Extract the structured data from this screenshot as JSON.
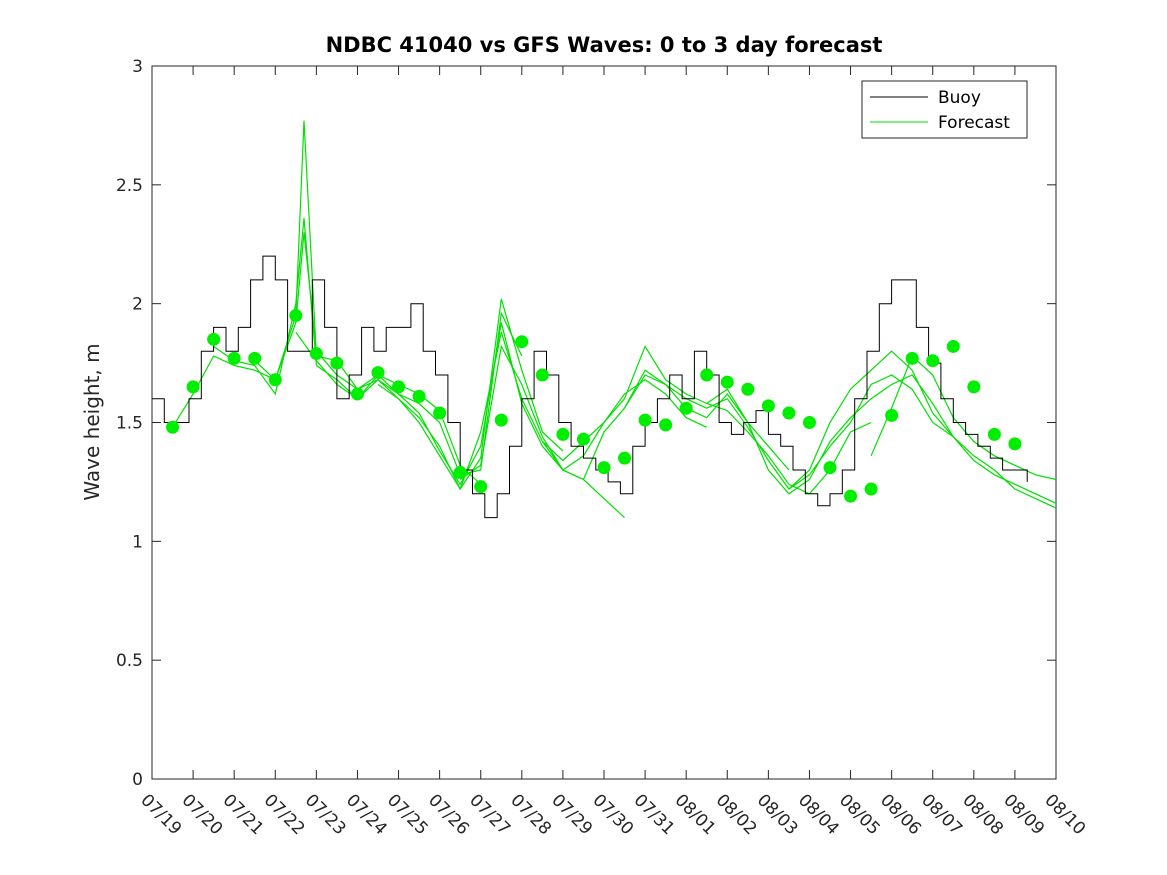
{
  "chart_data": {
    "type": "line",
    "title": "NDBC 41040 vs GFS Waves: 0 to 3 day forecast",
    "xlabel": "",
    "ylabel": "Wave height, m",
    "ylim": [
      0,
      3
    ],
    "yticks": [
      0,
      0.5,
      1,
      1.5,
      2,
      2.5,
      3
    ],
    "ytick_labels": [
      "0",
      "0.5",
      "1",
      "1.5",
      "2",
      "2.5",
      "3"
    ],
    "xlim": [
      0,
      22
    ],
    "xtick_labels": [
      "07/19",
      "07/20",
      "07/21",
      "07/22",
      "07/23",
      "07/24",
      "07/25",
      "07/26",
      "07/27",
      "07/28",
      "07/29",
      "07/30",
      "07/31",
      "08/01",
      "08/02",
      "08/03",
      "08/04",
      "08/05",
      "08/06",
      "08/07",
      "08/08",
      "08/09",
      "08/10"
    ],
    "grid": false,
    "legend": {
      "position": "top-right",
      "entries": [
        {
          "label": "Buoy",
          "color": "#000000"
        },
        {
          "label": "Forecast",
          "color": "#00e000"
        }
      ]
    },
    "colors": {
      "buoy": "#000000",
      "forecast": "#00e000",
      "markers": "#00ee00"
    },
    "series": [
      {
        "name": "Buoy",
        "x": [
          0,
          0.3,
          0.6,
          0.9,
          1.2,
          1.5,
          1.8,
          2.1,
          2.4,
          2.7,
          3.0,
          3.3,
          3.6,
          3.9,
          4.2,
          4.5,
          4.8,
          5.1,
          5.4,
          5.7,
          6.0,
          6.3,
          6.6,
          6.9,
          7.2,
          7.5,
          7.8,
          8.1,
          8.4,
          8.7,
          9.0,
          9.3,
          9.6,
          9.9,
          10.2,
          10.5,
          10.8,
          11.1,
          11.4,
          11.7,
          12.0,
          12.3,
          12.6,
          12.9,
          13.2,
          13.5,
          13.8,
          14.1,
          14.4,
          14.7,
          15.0,
          15.3,
          15.6,
          15.9,
          16.2,
          16.5,
          16.8,
          17.1,
          17.4,
          17.7,
          18.0,
          18.3,
          18.6,
          18.9,
          19.2,
          19.5,
          19.8,
          20.1,
          20.4,
          20.7,
          21.0,
          21.3
        ],
        "values": [
          1.6,
          1.5,
          1.5,
          1.6,
          1.8,
          1.9,
          1.8,
          1.9,
          2.1,
          2.2,
          2.1,
          1.8,
          1.8,
          2.1,
          1.9,
          1.6,
          1.7,
          1.9,
          1.8,
          1.9,
          1.9,
          2.0,
          1.8,
          1.7,
          1.5,
          1.3,
          1.2,
          1.1,
          1.2,
          1.4,
          1.6,
          1.8,
          1.7,
          1.5,
          1.4,
          1.35,
          1.3,
          1.25,
          1.2,
          1.4,
          1.5,
          1.6,
          1.7,
          1.6,
          1.8,
          1.7,
          1.5,
          1.45,
          1.5,
          1.55,
          1.45,
          1.4,
          1.3,
          1.2,
          1.15,
          1.2,
          1.3,
          1.6,
          1.8,
          2.0,
          2.1,
          2.1,
          1.9,
          1.75,
          1.6,
          1.5,
          1.45,
          1.4,
          1.35,
          1.3,
          1.3,
          1.25
        ]
      },
      {
        "name": "Forecast",
        "runs": [
          {
            "x": [
              0.5,
              1.0,
              1.5,
              2.0,
              2.5,
              3.0,
              3.5,
              3.7,
              4.0,
              4.5,
              5.0,
              5.5,
              6.0,
              6.5,
              7.0,
              7.5,
              8.0
            ],
            "values": [
              1.48,
              1.62,
              1.78,
              1.74,
              1.72,
              1.68,
              1.95,
              2.77,
              1.78,
              1.76,
              1.64,
              1.7,
              1.66,
              1.62,
              1.55,
              1.32,
              1.24
            ]
          },
          {
            "x": [
              1.5,
              2.0,
              2.5,
              3.0,
              3.5,
              3.7,
              4.0,
              4.5,
              5.0,
              5.5,
              6.0,
              6.5,
              7.0,
              7.5,
              8.0,
              8.5,
              9.0
            ],
            "values": [
              1.82,
              1.76,
              1.74,
              1.62,
              2.0,
              2.36,
              1.74,
              1.68,
              1.6,
              1.7,
              1.62,
              1.58,
              1.5,
              1.28,
              1.3,
              1.96,
              1.78
            ]
          },
          {
            "x": [
              2.5,
              3.0,
              3.5,
              3.7,
              4.0,
              4.5,
              5.0,
              5.5,
              6.0,
              6.5,
              7.0,
              7.5,
              8.0,
              8.5,
              9.0,
              9.5,
              10.0
            ],
            "values": [
              1.76,
              1.68,
              1.92,
              2.3,
              1.8,
              1.7,
              1.64,
              1.68,
              1.6,
              1.52,
              1.4,
              1.22,
              1.35,
              2.02,
              1.72,
              1.46,
              1.38
            ]
          },
          {
            "x": [
              3.5,
              4.0,
              4.5,
              5.0,
              5.5,
              6.0,
              6.5,
              7.0,
              7.5,
              8.0,
              8.5,
              9.0,
              9.5,
              10.0,
              10.5,
              11.0,
              11.5
            ],
            "values": [
              1.88,
              1.76,
              1.66,
              1.6,
              1.68,
              1.62,
              1.54,
              1.38,
              1.24,
              1.4,
              1.92,
              1.58,
              1.4,
              1.3,
              1.26,
              1.18,
              1.1
            ]
          },
          {
            "x": [
              5.5,
              6.0,
              6.5,
              7.0,
              7.5,
              8.0,
              8.5,
              9.0,
              9.5,
              10.0,
              10.5,
              11.0,
              11.5,
              12.0,
              12.5,
              13.0,
              13.5
            ],
            "values": [
              1.66,
              1.6,
              1.5,
              1.36,
              1.22,
              1.46,
              1.88,
              1.6,
              1.42,
              1.34,
              1.42,
              1.5,
              1.62,
              1.68,
              1.62,
              1.52,
              1.48
            ]
          },
          {
            "x": [
              7.5,
              8.0,
              8.5,
              9.0,
              9.5,
              10.0,
              10.5,
              11.0,
              11.5,
              12.0,
              12.5,
              13.0,
              13.5,
              14.0,
              14.5,
              15.0,
              15.5
            ],
            "values": [
              1.26,
              1.32,
              1.82,
              1.66,
              1.44,
              1.3,
              1.26,
              1.46,
              1.56,
              1.72,
              1.66,
              1.56,
              1.52,
              1.62,
              1.5,
              1.4,
              1.3
            ]
          },
          {
            "x": [
              9.5,
              10.0,
              10.5,
              11.0,
              11.5,
              12.0,
              12.5,
              13.0,
              13.5,
              14.0,
              14.5,
              15.0,
              15.5,
              16.0,
              16.5,
              17.0,
              17.5
            ],
            "values": [
              1.42,
              1.3,
              1.36,
              1.5,
              1.6,
              1.82,
              1.68,
              1.62,
              1.58,
              1.55,
              1.46,
              1.36,
              1.24,
              1.2,
              1.3,
              1.46,
              1.5
            ]
          },
          {
            "x": [
              11.5,
              12.0,
              12.5,
              13.0,
              13.5,
              14.0,
              14.5,
              15.0,
              15.5,
              16.0,
              16.5,
              17.0,
              17.5,
              18.0,
              18.5,
              19.0,
              19.5
            ],
            "values": [
              1.56,
              1.7,
              1.66,
              1.6,
              1.56,
              1.6,
              1.48,
              1.34,
              1.22,
              1.28,
              1.4,
              1.5,
              1.66,
              1.7,
              1.64,
              1.5,
              1.44
            ]
          },
          {
            "x": [
              13.5,
              14.0,
              14.5,
              15.0,
              15.5,
              16.0,
              16.5,
              17.0,
              17.5,
              18.0,
              18.5,
              19.0,
              19.5,
              20.0,
              20.5,
              21.0,
              21.5,
              22.0
            ],
            "values": [
              1.58,
              1.64,
              1.5,
              1.3,
              1.2,
              1.26,
              1.42,
              1.52,
              1.6,
              1.66,
              1.7,
              1.58,
              1.44,
              1.36,
              1.3,
              1.22,
              1.18,
              1.14
            ]
          },
          {
            "x": [
              15.5,
              16.0,
              16.5,
              17.0,
              17.5,
              18.0,
              18.5,
              19.0,
              19.5,
              20.0,
              20.5,
              21.0,
              21.5,
              22.0
            ],
            "values": [
              1.22,
              1.3,
              1.5,
              1.64,
              1.72,
              1.8,
              1.72,
              1.54,
              1.44,
              1.34,
              1.28,
              1.24,
              1.2,
              1.16
            ]
          },
          {
            "x": [
              17.5,
              18.0,
              18.5,
              19.0,
              19.5,
              20.0,
              20.5,
              21.0,
              21.5,
              22.0
            ],
            "values": [
              1.36,
              1.56,
              1.78,
              1.7,
              1.52,
              1.42,
              1.36,
              1.32,
              1.28,
              1.26
            ]
          }
        ],
        "markers": {
          "x": [
            0.5,
            1.0,
            1.5,
            2.0,
            2.5,
            3.0,
            3.5,
            4.0,
            4.5,
            5.0,
            5.5,
            6.0,
            6.5,
            7.0,
            7.5,
            8.0,
            8.5,
            9.0,
            9.5,
            10.0,
            10.5,
            11.0,
            11.5,
            12.0,
            12.5,
            13.0,
            13.5,
            14.0,
            14.5,
            15.0,
            15.5,
            16.0,
            16.5,
            17.0,
            17.5,
            18.0,
            18.5,
            19.0,
            19.5,
            20.0,
            20.5,
            21.0
          ],
          "values": [
            1.48,
            1.65,
            1.85,
            1.77,
            1.77,
            1.68,
            1.95,
            1.79,
            1.75,
            1.62,
            1.71,
            1.65,
            1.61,
            1.54,
            1.29,
            1.23,
            1.51,
            1.84,
            1.7,
            1.45,
            1.43,
            1.31,
            1.35,
            1.51,
            1.49,
            1.56,
            1.7,
            1.67,
            1.64,
            1.57,
            1.54,
            1.5,
            1.31,
            1.19,
            1.22,
            1.53,
            1.77,
            1.76,
            1.82,
            1.65,
            1.45,
            1.41
          ]
        }
      }
    ]
  }
}
